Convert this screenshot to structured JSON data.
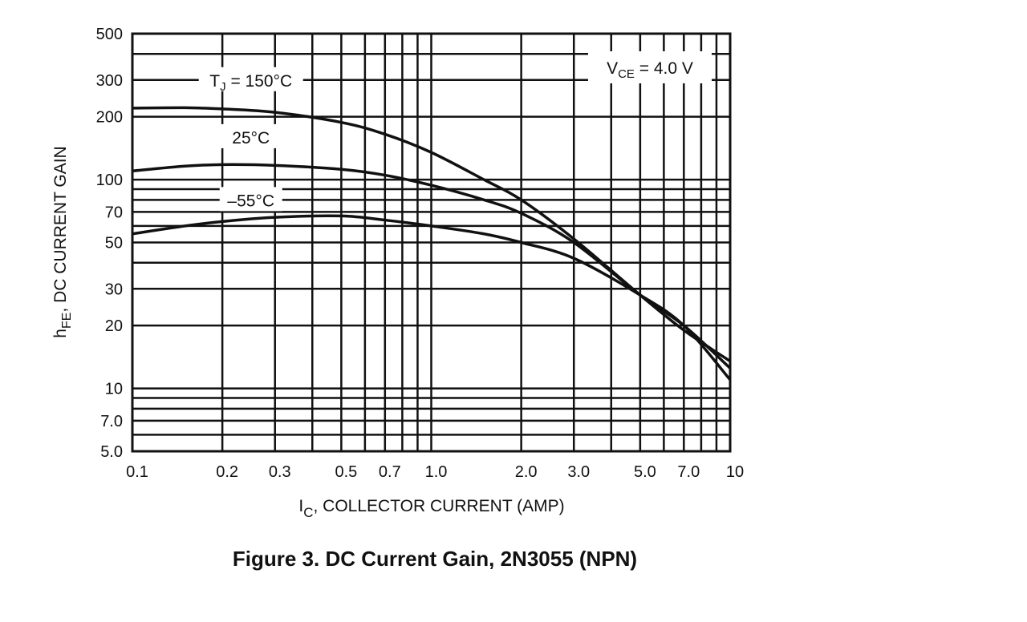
{
  "chart_data": {
    "type": "line",
    "title": "Figure 3. DC Current Gain, 2N3055 (NPN)",
    "xlabel": {
      "main": "I",
      "sub": "C",
      "rest": ", COLLECTOR CURRENT (AMP)"
    },
    "ylabel": {
      "main": "h",
      "sub": "FE",
      "rest": ", DC CURRENT GAIN"
    },
    "xscale": "log",
    "yscale": "log",
    "xlim": [
      0.1,
      10
    ],
    "ylim": [
      5,
      500
    ],
    "grid": true,
    "x_ticks": [
      {
        "value": 0.1,
        "label": "0.1"
      },
      {
        "value": 0.2,
        "label": "0.2"
      },
      {
        "value": 0.3,
        "label": "0.3"
      },
      {
        "value": 0.5,
        "label": "0.5"
      },
      {
        "value": 0.7,
        "label": "0.7"
      },
      {
        "value": 1.0,
        "label": "1.0"
      },
      {
        "value": 2.0,
        "label": "2.0"
      },
      {
        "value": 3.0,
        "label": "3.0"
      },
      {
        "value": 5.0,
        "label": "5.0"
      },
      {
        "value": 7.0,
        "label": "7.0"
      },
      {
        "value": 10,
        "label": "10"
      }
    ],
    "y_ticks": [
      {
        "value": 500,
        "label": "500"
      },
      {
        "value": 300,
        "label": "300"
      },
      {
        "value": 200,
        "label": "200"
      },
      {
        "value": 100,
        "label": "100"
      },
      {
        "value": 70,
        "label": "70"
      },
      {
        "value": 50,
        "label": "50"
      },
      {
        "value": 30,
        "label": "30"
      },
      {
        "value": 20,
        "label": "20"
      },
      {
        "value": 10,
        "label": "10"
      },
      {
        "value": 7,
        "label": "7.0"
      },
      {
        "value": 5,
        "label": "5.0"
      }
    ],
    "x": [
      0.1,
      0.15,
      0.2,
      0.3,
      0.5,
      0.7,
      1.0,
      1.5,
      2.0,
      3.0,
      5.0,
      7.0,
      10
    ],
    "series": [
      {
        "name": "TJ = 150°C",
        "label": {
          "main": "T",
          "sub": "J",
          "rest": " = 150°C"
        },
        "label_at": [
          0.3,
          300
        ],
        "values": [
          220,
          221,
          218,
          210,
          188,
          165,
          135,
          100,
          80,
          52,
          28,
          19,
          13.5
        ]
      },
      {
        "name": "25°C",
        "label": {
          "main": "25°C",
          "sub": "",
          "rest": ""
        },
        "label_at": [
          0.3,
          160
        ],
        "values": [
          110,
          116,
          118,
          117,
          112,
          105,
          94,
          80,
          69,
          50,
          28,
          20,
          12.5
        ]
      },
      {
        "name": "-55°C",
        "label": {
          "main": "–55°C",
          "sub": "",
          "rest": ""
        },
        "label_at": [
          0.3,
          80
        ],
        "values": [
          55,
          60,
          63,
          66,
          67,
          64,
          60,
          55,
          50,
          42,
          28,
          20,
          11
        ]
      }
    ],
    "annotation": {
      "main": "V",
      "sub": "CE",
      "rest": " = 4.0 V"
    },
    "line_color": "#111111"
  }
}
